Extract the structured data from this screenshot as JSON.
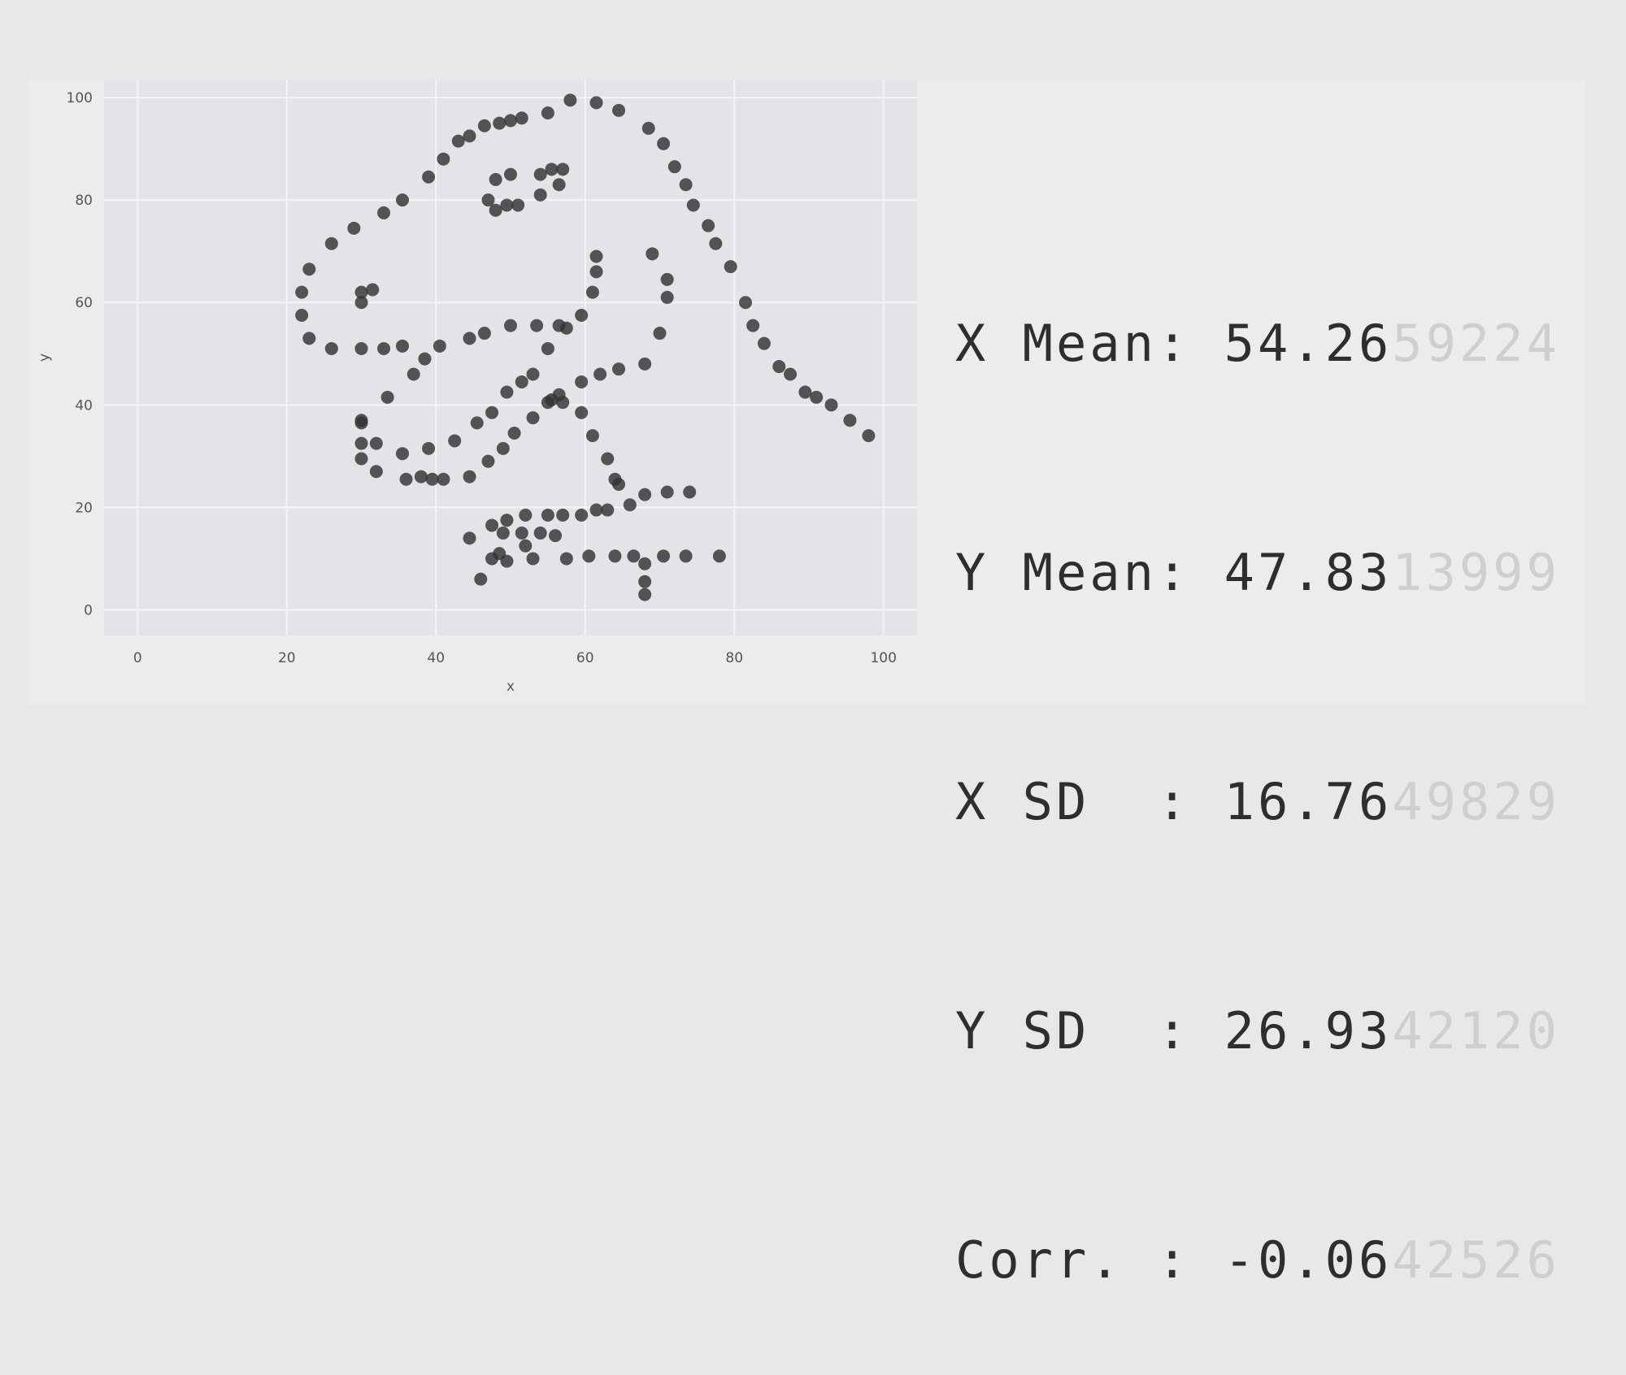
{
  "chart_data": {
    "type": "scatter",
    "xlabel": "x",
    "ylabel": "y",
    "xlim": [
      -4.5,
      104.5
    ],
    "ylim": [
      -5,
      103.5
    ],
    "xticks": [
      "0",
      "20",
      "40",
      "60",
      "80",
      "100"
    ],
    "yticks": [
      "0",
      "20",
      "40",
      "60",
      "80",
      "100"
    ],
    "grid": true,
    "colors": {
      "point": "#333333",
      "plot_bg": "#e4e4e8",
      "grid": "#f4f4f4"
    },
    "points": [
      [
        98,
        34
      ],
      [
        95.5,
        37
      ],
      [
        93,
        40
      ],
      [
        91,
        41.5
      ],
      [
        89.5,
        42.5
      ],
      [
        87.5,
        46
      ],
      [
        86,
        47.5
      ],
      [
        84,
        52
      ],
      [
        82.5,
        55.5
      ],
      [
        81.5,
        60
      ],
      [
        79.5,
        67
      ],
      [
        77.5,
        71.5
      ],
      [
        76.5,
        75
      ],
      [
        74.5,
        79
      ],
      [
        73.5,
        83
      ],
      [
        72,
        86.5
      ],
      [
        70.5,
        91
      ],
      [
        68.5,
        94
      ],
      [
        64.5,
        97.5
      ],
      [
        61.5,
        99
      ],
      [
        58,
        99.5
      ],
      [
        55,
        97
      ],
      [
        51.5,
        96
      ],
      [
        50,
        95.5
      ],
      [
        48.5,
        95
      ],
      [
        46.5,
        94.5
      ],
      [
        44.5,
        92.5
      ],
      [
        43,
        91.5
      ],
      [
        41,
        88
      ],
      [
        39,
        84.5
      ],
      [
        35.5,
        80
      ],
      [
        33,
        77.5
      ],
      [
        29,
        74.5
      ],
      [
        26,
        71.5
      ],
      [
        23,
        66.5
      ],
      [
        22,
        62
      ],
      [
        22,
        57.5
      ],
      [
        23,
        53
      ],
      [
        26,
        51
      ],
      [
        30,
        51
      ],
      [
        33,
        51
      ],
      [
        35.5,
        51.5
      ],
      [
        38.5,
        49
      ],
      [
        40.5,
        51.5
      ],
      [
        44.5,
        53
      ],
      [
        46.5,
        54
      ],
      [
        50,
        55.5
      ],
      [
        53.5,
        55.5
      ],
      [
        56.5,
        55.5
      ],
      [
        57.5,
        55
      ],
      [
        59.5,
        57.5
      ],
      [
        61,
        62
      ],
      [
        61.5,
        66
      ],
      [
        61.5,
        69
      ],
      [
        69,
        69.5
      ],
      [
        71,
        64.5
      ],
      [
        71,
        61
      ],
      [
        70,
        54
      ],
      [
        68,
        48
      ],
      [
        64.5,
        47
      ],
      [
        62,
        46
      ],
      [
        59.5,
        44.5
      ],
      [
        56.5,
        42
      ],
      [
        55.5,
        41
      ],
      [
        57,
        40.5
      ],
      [
        59.5,
        38.5
      ],
      [
        61,
        34
      ],
      [
        63,
        29.5
      ],
      [
        64,
        25.5
      ],
      [
        64.5,
        24.5
      ],
      [
        66,
        20.5
      ],
      [
        68,
        22.5
      ],
      [
        71,
        23
      ],
      [
        74,
        23
      ],
      [
        61.5,
        19.5
      ],
      [
        63,
        19.5
      ],
      [
        59.5,
        18.5
      ],
      [
        57,
        18.5
      ],
      [
        55,
        18.5
      ],
      [
        52,
        18.5
      ],
      [
        49.5,
        17.5
      ],
      [
        47.5,
        16.5
      ],
      [
        44.5,
        14
      ],
      [
        49,
        15
      ],
      [
        51.5,
        15
      ],
      [
        54,
        15
      ],
      [
        56,
        14.5
      ],
      [
        52,
        12.5
      ],
      [
        48.5,
        11
      ],
      [
        47.5,
        10
      ],
      [
        49.5,
        9.5
      ],
      [
        53,
        10
      ],
      [
        57.5,
        10
      ],
      [
        60.5,
        10.5
      ],
      [
        64,
        10.5
      ],
      [
        66.5,
        10.5
      ],
      [
        68,
        9
      ],
      [
        70.5,
        10.5
      ],
      [
        73.5,
        10.5
      ],
      [
        78,
        10.5
      ],
      [
        68,
        5.5
      ],
      [
        68,
        3
      ],
      [
        46,
        6
      ],
      [
        55,
        51
      ],
      [
        53,
        46
      ],
      [
        51.5,
        44.5
      ],
      [
        49.5,
        42.5
      ],
      [
        47.5,
        38.5
      ],
      [
        45.5,
        36.5
      ],
      [
        42.5,
        33
      ],
      [
        39,
        31.5
      ],
      [
        35.5,
        30.5
      ],
      [
        32,
        32.5
      ],
      [
        30,
        32.5
      ],
      [
        30,
        36.5
      ],
      [
        30,
        37
      ],
      [
        33.5,
        41.5
      ],
      [
        37,
        46
      ],
      [
        30,
        29.5
      ],
      [
        32,
        27
      ],
      [
        36,
        25.5
      ],
      [
        38,
        26
      ],
      [
        39.5,
        25.5
      ],
      [
        41,
        25.5
      ],
      [
        44.5,
        26
      ],
      [
        47,
        29
      ],
      [
        49,
        31.5
      ],
      [
        50.5,
        34.5
      ],
      [
        53,
        37.5
      ],
      [
        55,
        40.5
      ],
      [
        49.5,
        79
      ],
      [
        48,
        78
      ],
      [
        51,
        79
      ],
      [
        47,
        80
      ],
      [
        48,
        84
      ],
      [
        50,
        85
      ],
      [
        54,
        85
      ],
      [
        55.5,
        86
      ],
      [
        57,
        86
      ],
      [
        56.5,
        83
      ],
      [
        54,
        81
      ],
      [
        30,
        60
      ],
      [
        30,
        62
      ],
      [
        31.5,
        62.5
      ]
    ]
  },
  "stats": [
    {
      "label": "X Mean: ",
      "value_bright": "54.26",
      "value_dim": "59224"
    },
    {
      "label": "Y Mean: ",
      "value_bright": "47.83",
      "value_dim": "13999"
    },
    {
      "label": "X SD  : ",
      "value_bright": "16.76",
      "value_dim": "49829"
    },
    {
      "label": "Y SD  : ",
      "value_bright": "26.93",
      "value_dim": "42120"
    },
    {
      "label": "Corr. : ",
      "value_bright": "-0.06",
      "value_dim": "42526"
    }
  ]
}
